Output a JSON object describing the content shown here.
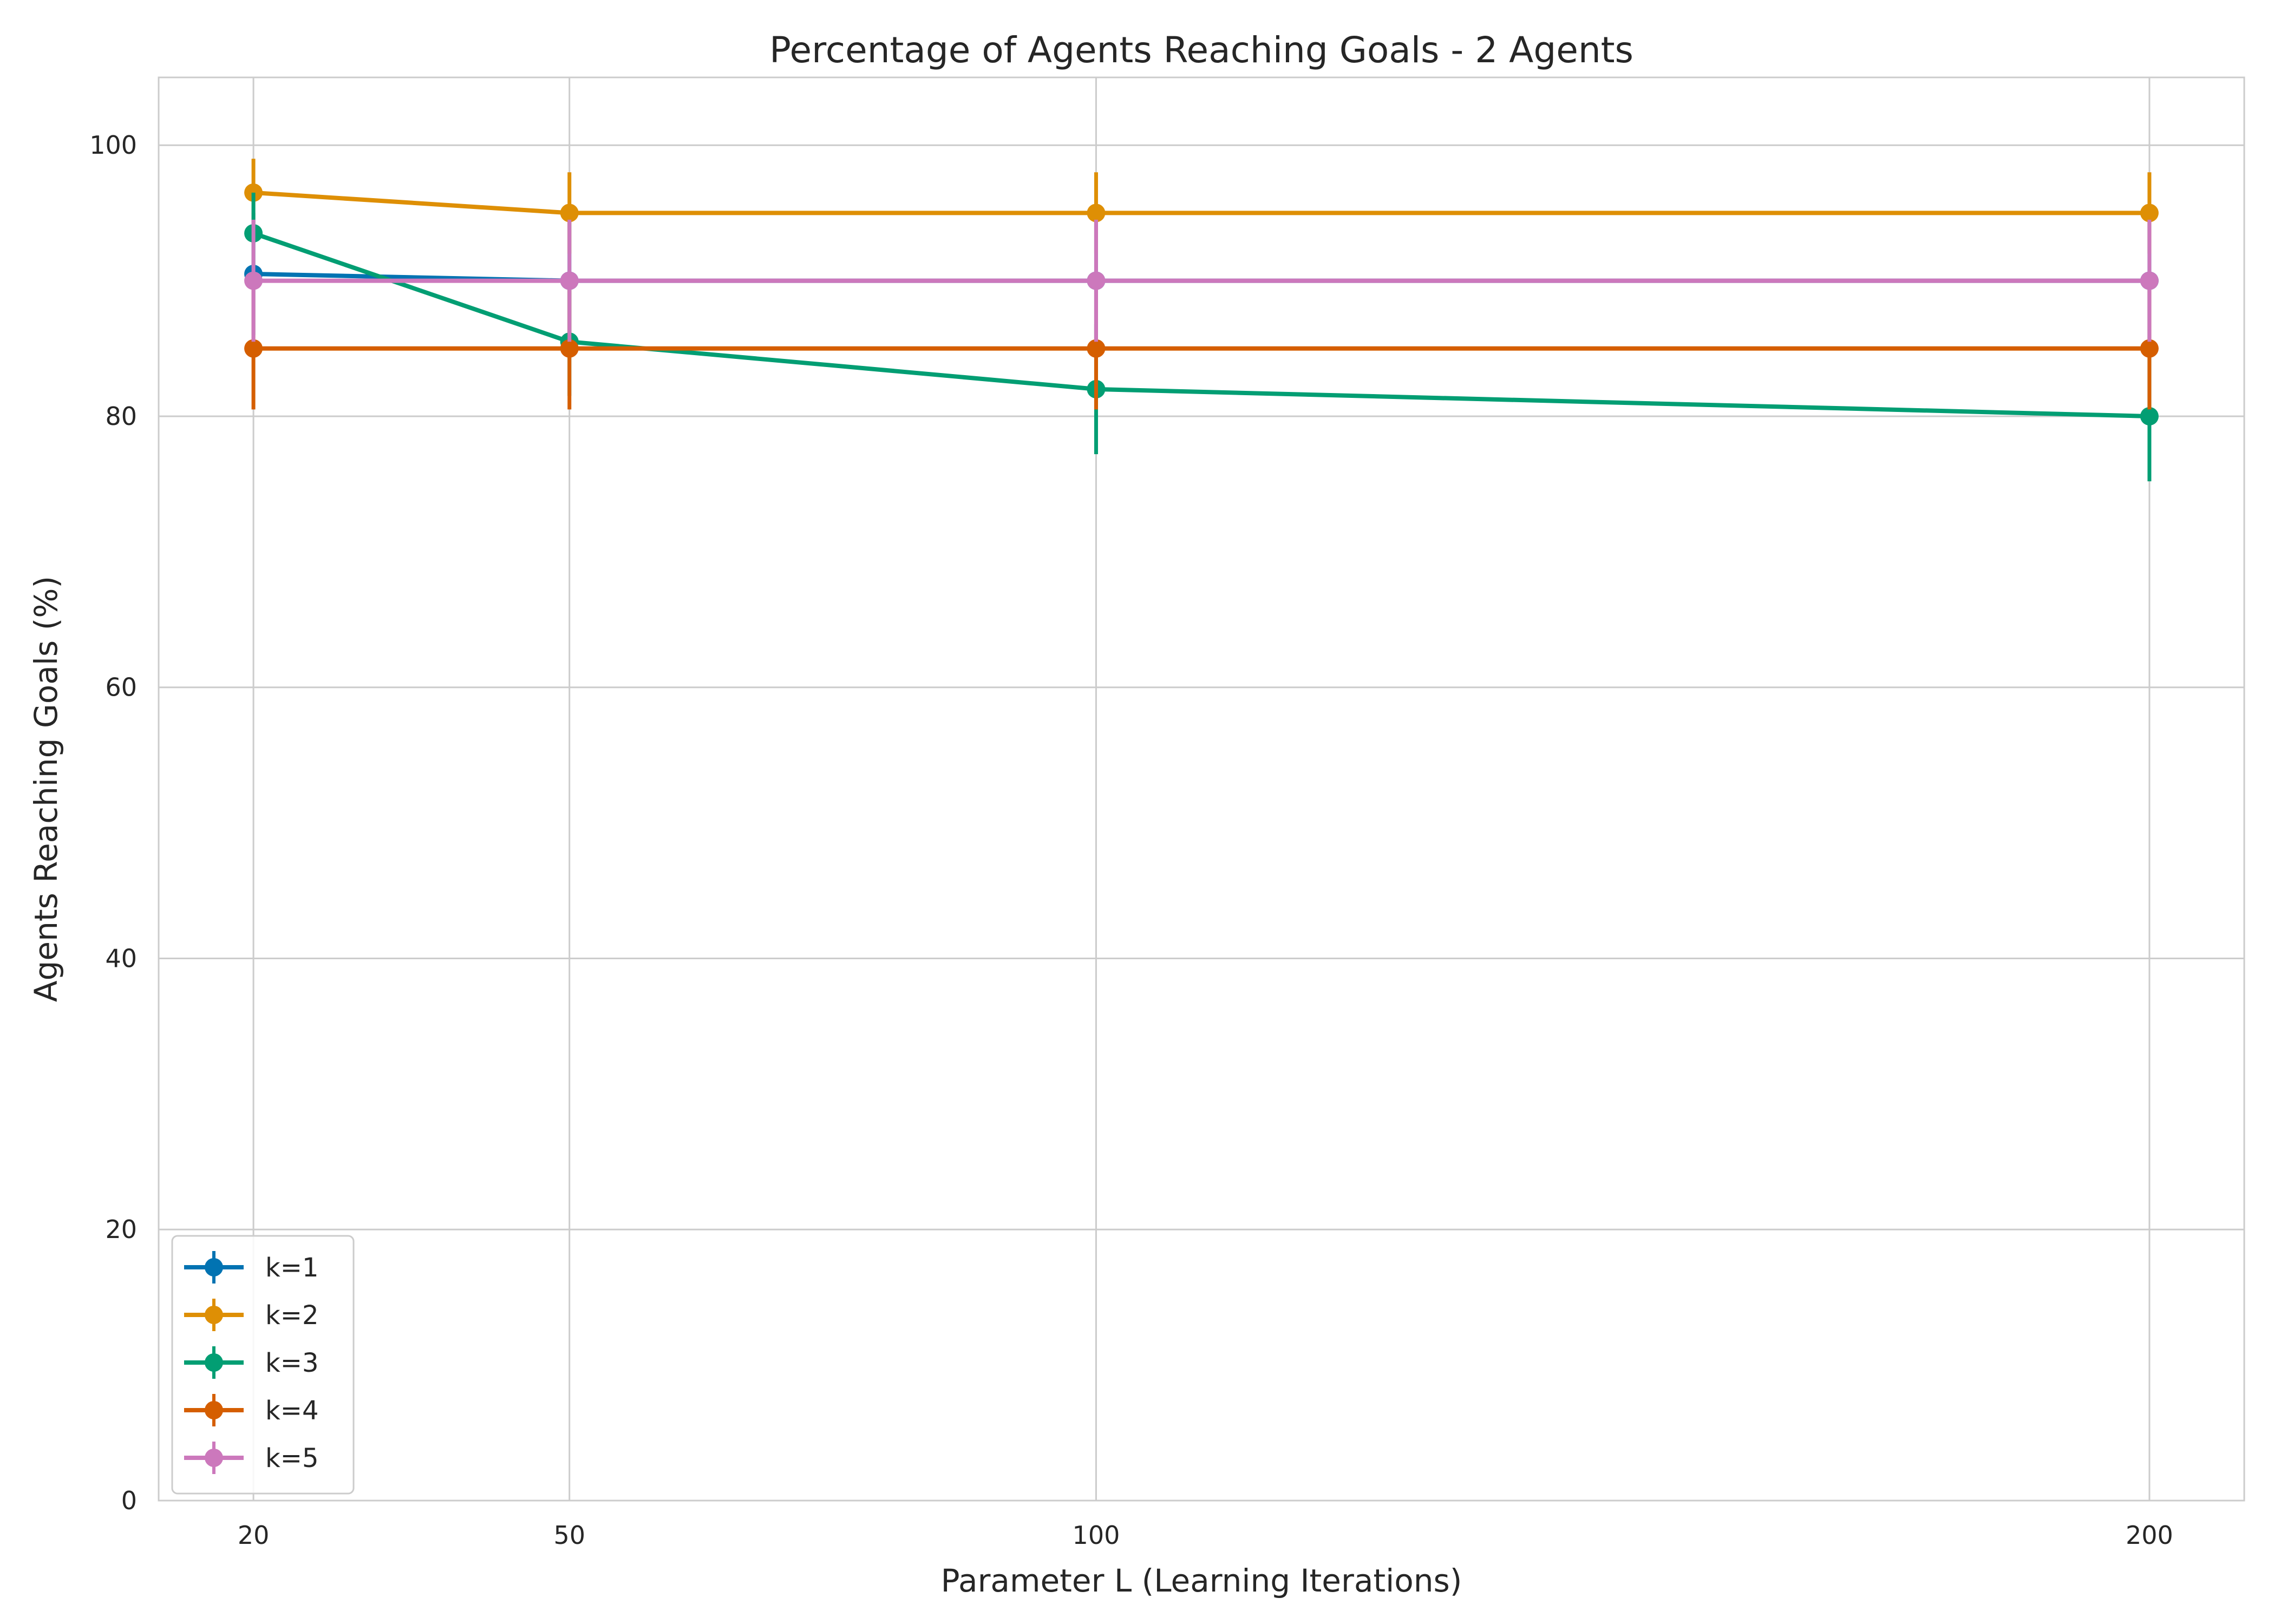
{
  "chart_data": {
    "type": "line",
    "title": "Percentage of Agents Reaching Goals - 2 Agents",
    "xlabel": "Parameter L (Learning Iterations)",
    "ylabel": "Agents Reaching Goals (%)",
    "x": [
      20,
      50,
      100,
      200
    ],
    "x_tick_labels": [
      "20",
      "50",
      "100",
      "200"
    ],
    "xlim": [
      11,
      209
    ],
    "ylim": [
      0,
      105
    ],
    "y_ticks": [
      0,
      20,
      40,
      60,
      80,
      100
    ],
    "y_tick_labels": [
      "0",
      "20",
      "40",
      "60",
      "80",
      "100"
    ],
    "grid": true,
    "legend_position": "bottom-left",
    "error_bars": true,
    "series": [
      {
        "name": "k=1",
        "color": "#0173b2",
        "values": [
          90.5,
          90.0,
          90.0,
          90.0
        ],
        "err": [
          4.5,
          4.5,
          4.5,
          4.5
        ]
      },
      {
        "name": "k=2",
        "color": "#de8f05",
        "values": [
          96.5,
          95.0,
          95.0,
          95.0
        ],
        "err": [
          2.5,
          3.0,
          3.0,
          3.0
        ]
      },
      {
        "name": "k=3",
        "color": "#029e73",
        "values": [
          93.5,
          85.5,
          82.0,
          80.0
        ],
        "err": [
          3.0,
          4.0,
          4.8,
          4.8
        ]
      },
      {
        "name": "k=4",
        "color": "#d55e00",
        "values": [
          85.0,
          85.0,
          85.0,
          85.0
        ],
        "err": [
          4.5,
          4.5,
          4.5,
          4.5
        ]
      },
      {
        "name": "k=5",
        "color": "#cc78bc",
        "values": [
          90.0,
          90.0,
          90.0,
          90.0
        ],
        "err": [
          4.5,
          4.5,
          4.5,
          4.5
        ]
      }
    ]
  }
}
